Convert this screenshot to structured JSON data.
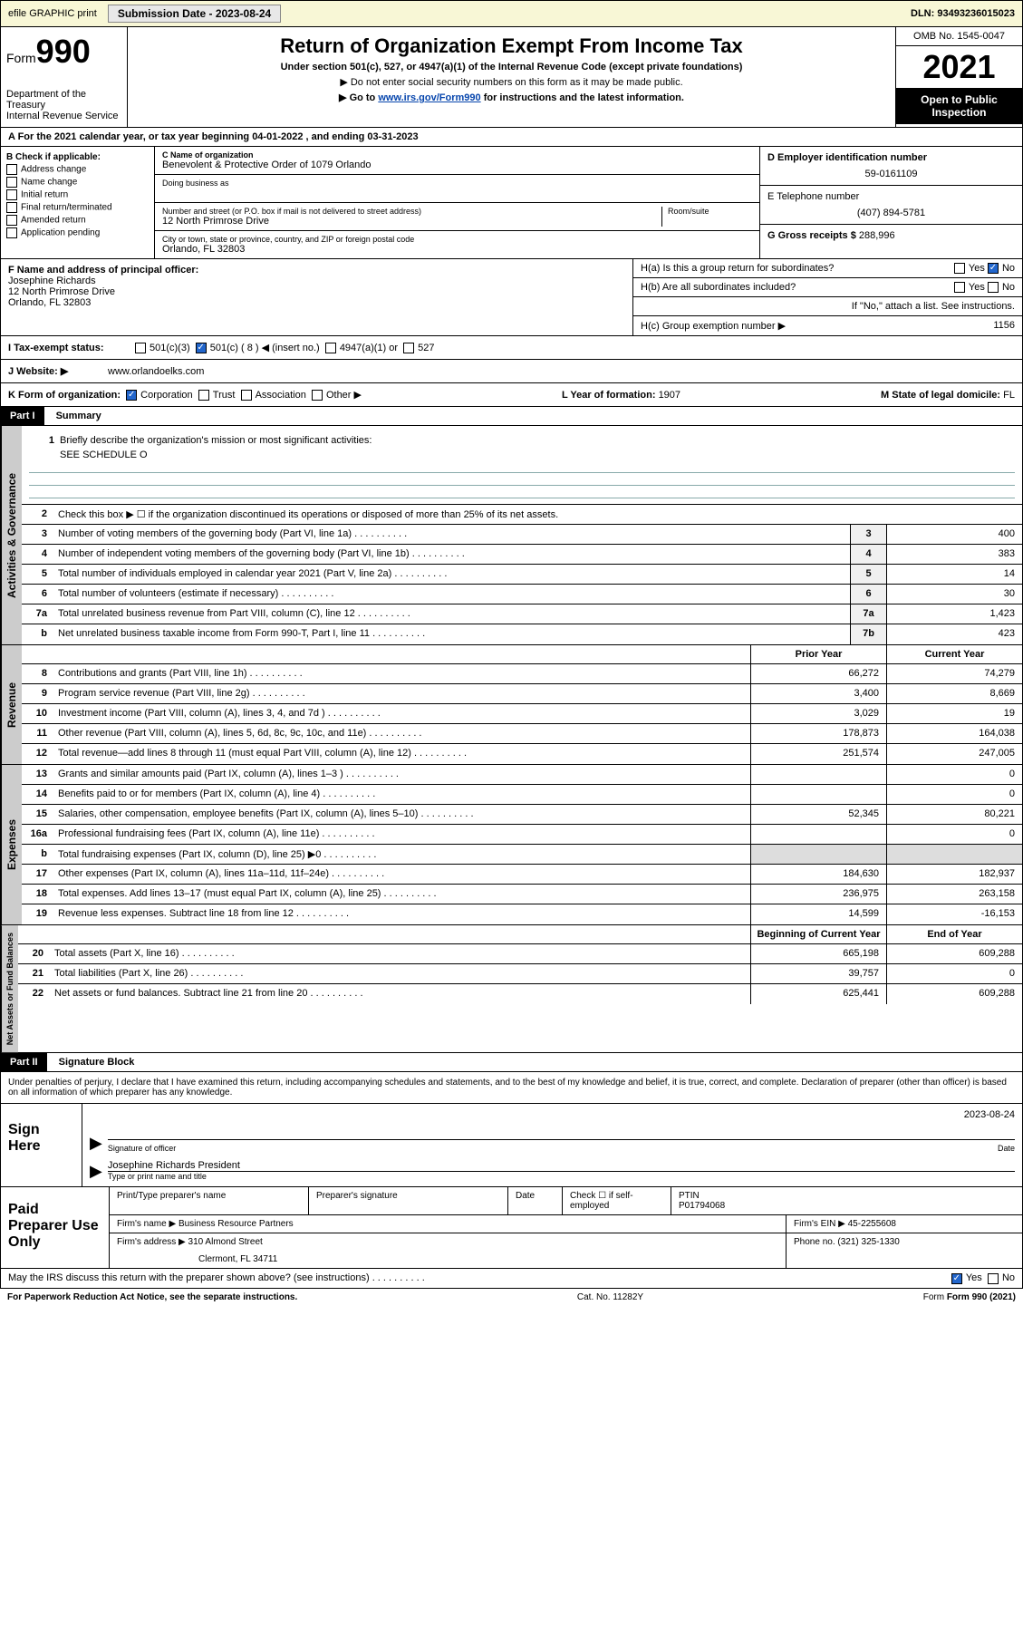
{
  "topbar": {
    "efile": "efile GRAPHIC print",
    "subdate_label": "Submission Date - 2023-08-24",
    "dln": "DLN: 93493236015023"
  },
  "header": {
    "form_label": "Form",
    "form_num": "990",
    "dept": "Department of the Treasury",
    "irs": "Internal Revenue Service",
    "title": "Return of Organization Exempt From Income Tax",
    "subtitle": "Under section 501(c), 527, or 4947(a)(1) of the Internal Revenue Code (except private foundations)",
    "note1": "▶ Do not enter social security numbers on this form as it may be made public.",
    "note2_pre": "▶ Go to ",
    "note2_link": "www.irs.gov/Form990",
    "note2_post": " for instructions and the latest information.",
    "omb": "OMB No. 1545-0047",
    "year": "2021",
    "open": "Open to Public Inspection"
  },
  "rowA": "A For the 2021 calendar year, or tax year beginning 04-01-2022   , and ending 03-31-2023",
  "colB": {
    "label": "B Check if applicable:",
    "items": [
      "Address change",
      "Name change",
      "Initial return",
      "Final return/terminated",
      "Amended return",
      "Application pending"
    ]
  },
  "colC": {
    "name_label": "C Name of organization",
    "name": "Benevolent & Protective Order of 1079 Orlando",
    "dba_label": "Doing business as",
    "addr_label": "Number and street (or P.O. box if mail is not delivered to street address)",
    "room_label": "Room/suite",
    "addr": "12 North Primrose Drive",
    "city_label": "City or town, state or province, country, and ZIP or foreign postal code",
    "city": "Orlando, FL  32803"
  },
  "colD": {
    "ein_label": "D Employer identification number",
    "ein": "59-0161109",
    "phone_label": "E Telephone number",
    "phone": "(407) 894-5781",
    "gross_label": "G Gross receipts $",
    "gross": "288,996"
  },
  "rowF": {
    "label": "F  Name and address of principal officer:",
    "name": "Josephine Richards",
    "addr1": "12 North Primrose Drive",
    "addr2": "Orlando, FL  32803"
  },
  "rowH": {
    "ha": "H(a)  Is this a group return for subordinates?",
    "hb": "H(b)  Are all subordinates included?",
    "hb_note": "If \"No,\" attach a list. See instructions.",
    "hc_label": "H(c)  Group exemption number ▶",
    "hc_val": "1156",
    "yes": "Yes",
    "no": "No"
  },
  "rowI": {
    "label": "I    Tax-exempt status:",
    "c3": "501(c)(3)",
    "c": "501(c) ( 8 ) ◀ (insert no.)",
    "a4947": "4947(a)(1) or",
    "s527": "527"
  },
  "rowJ": {
    "label": "J   Website: ▶",
    "val": "www.orlandoelks.com"
  },
  "rowK": {
    "label": "K Form of organization:",
    "corp": "Corporation",
    "trust": "Trust",
    "assoc": "Association",
    "other": "Other ▶",
    "L_label": "L Year of formation:",
    "L_val": "1907",
    "M_label": "M State of legal domicile:",
    "M_val": "FL"
  },
  "part1": {
    "hdr": "Part I",
    "title": "Summary",
    "tab_gov": "Activities & Governance",
    "tab_rev": "Revenue",
    "tab_exp": "Expenses",
    "tab_net": "Net Assets or Fund Balances",
    "q1": "Briefly describe the organization's mission or most significant activities:",
    "q1_val": "SEE SCHEDULE O",
    "q2": "Check this box ▶ ☐  if the organization discontinued its operations or disposed of more than 25% of its net assets.",
    "lines_gov": [
      {
        "n": "3",
        "t": "Number of voting members of the governing body (Part VI, line 1a)",
        "box": "3",
        "v": "400"
      },
      {
        "n": "4",
        "t": "Number of independent voting members of the governing body (Part VI, line 1b)",
        "box": "4",
        "v": "383"
      },
      {
        "n": "5",
        "t": "Total number of individuals employed in calendar year 2021 (Part V, line 2a)",
        "box": "5",
        "v": "14"
      },
      {
        "n": "6",
        "t": "Total number of volunteers (estimate if necessary)",
        "box": "6",
        "v": "30"
      },
      {
        "n": "7a",
        "t": "Total unrelated business revenue from Part VIII, column (C), line 12",
        "box": "7a",
        "v": "1,423"
      },
      {
        "n": "b",
        "t": "Net unrelated business taxable income from Form 990-T, Part I, line 11",
        "box": "7b",
        "v": "423"
      }
    ],
    "col_prior": "Prior Year",
    "col_curr": "Current Year",
    "lines_rev": [
      {
        "n": "8",
        "t": "Contributions and grants (Part VIII, line 1h)",
        "p": "66,272",
        "c": "74,279"
      },
      {
        "n": "9",
        "t": "Program service revenue (Part VIII, line 2g)",
        "p": "3,400",
        "c": "8,669"
      },
      {
        "n": "10",
        "t": "Investment income (Part VIII, column (A), lines 3, 4, and 7d )",
        "p": "3,029",
        "c": "19"
      },
      {
        "n": "11",
        "t": "Other revenue (Part VIII, column (A), lines 5, 6d, 8c, 9c, 10c, and 11e)",
        "p": "178,873",
        "c": "164,038"
      },
      {
        "n": "12",
        "t": "Total revenue—add lines 8 through 11 (must equal Part VIII, column (A), line 12)",
        "p": "251,574",
        "c": "247,005"
      }
    ],
    "lines_exp": [
      {
        "n": "13",
        "t": "Grants and similar amounts paid (Part IX, column (A), lines 1–3 )",
        "p": "",
        "c": "0"
      },
      {
        "n": "14",
        "t": "Benefits paid to or for members (Part IX, column (A), line 4)",
        "p": "",
        "c": "0"
      },
      {
        "n": "15",
        "t": "Salaries, other compensation, employee benefits (Part IX, column (A), lines 5–10)",
        "p": "52,345",
        "c": "80,221"
      },
      {
        "n": "16a",
        "t": "Professional fundraising fees (Part IX, column (A), line 11e)",
        "p": "",
        "c": "0"
      },
      {
        "n": "b",
        "t": "Total fundraising expenses (Part IX, column (D), line 25) ▶0",
        "p": "shade",
        "c": "shade"
      },
      {
        "n": "17",
        "t": "Other expenses (Part IX, column (A), lines 11a–11d, 11f–24e)",
        "p": "184,630",
        "c": "182,937"
      },
      {
        "n": "18",
        "t": "Total expenses. Add lines 13–17 (must equal Part IX, column (A), line 25)",
        "p": "236,975",
        "c": "263,158"
      },
      {
        "n": "19",
        "t": "Revenue less expenses. Subtract line 18 from line 12",
        "p": "14,599",
        "c": "-16,153"
      }
    ],
    "col_begin": "Beginning of Current Year",
    "col_end": "End of Year",
    "lines_net": [
      {
        "n": "20",
        "t": "Total assets (Part X, line 16)",
        "p": "665,198",
        "c": "609,288"
      },
      {
        "n": "21",
        "t": "Total liabilities (Part X, line 26)",
        "p": "39,757",
        "c": "0"
      },
      {
        "n": "22",
        "t": "Net assets or fund balances. Subtract line 21 from line 20",
        "p": "625,441",
        "c": "609,288"
      }
    ]
  },
  "part2": {
    "hdr": "Part II",
    "title": "Signature Block",
    "penalty": "Under penalties of perjury, I declare that I have examined this return, including accompanying schedules and statements, and to the best of my knowledge and belief, it is true, correct, and complete. Declaration of preparer (other than officer) is based on all information of which preparer has any knowledge.",
    "sign_here": "Sign Here",
    "sig_officer": "Signature of officer",
    "sig_date_lbl": "Date",
    "sig_date": "2023-08-24",
    "officer_name": "Josephine Richards  President",
    "type_name": "Type or print name and title",
    "paid": "Paid Preparer Use Only",
    "pp_name": "Print/Type preparer's name",
    "pp_sig": "Preparer's signature",
    "pp_date": "Date",
    "pp_check": "Check ☐ if self-employed",
    "ptin_lbl": "PTIN",
    "ptin": "P01794068",
    "firm_name_lbl": "Firm's name    ▶",
    "firm_name": "Business Resource Partners",
    "firm_ein_lbl": "Firm's EIN ▶",
    "firm_ein": "45-2255608",
    "firm_addr_lbl": "Firm's address ▶",
    "firm_addr1": "310 Almond Street",
    "firm_addr2": "Clermont, FL  34711",
    "phone_lbl": "Phone no.",
    "phone": "(321) 325-1330",
    "discuss": "May the IRS discuss this return with the preparer shown above? (see instructions)",
    "yes": "Yes",
    "no": "No"
  },
  "footer": {
    "pra": "For Paperwork Reduction Act Notice, see the separate instructions.",
    "cat": "Cat. No. 11282Y",
    "form": "Form 990 (2021)"
  }
}
